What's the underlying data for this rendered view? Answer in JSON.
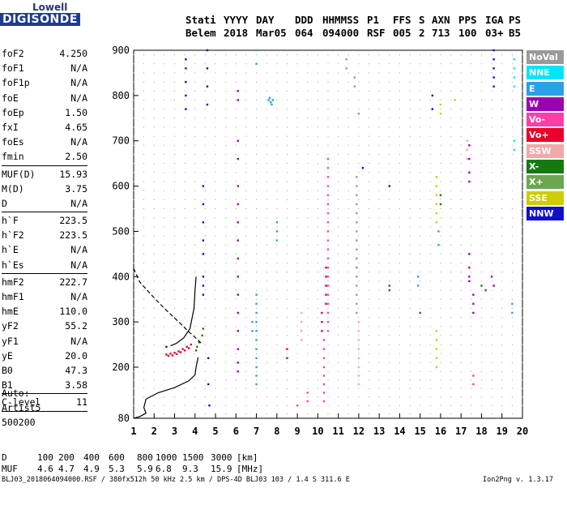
{
  "logo": {
    "top": "Lowell",
    "bottom": "DIGISONDE"
  },
  "header": {
    "labels": [
      "Stati",
      "YYYY",
      "DAY",
      "DDD",
      "HHMMSS",
      "P1",
      "FFS",
      "S",
      "AXN",
      "PPS",
      "IGA",
      "PS"
    ],
    "values": [
      "Belem",
      "2018",
      "Mar05",
      "064",
      "094000",
      "RSF",
      "005",
      "2",
      "713",
      "100",
      "03+",
      "B5"
    ]
  },
  "params": [
    {
      "label": "foF2",
      "value": "4.250"
    },
    {
      "label": "foF1",
      "value": "N/A"
    },
    {
      "label": "foF1p",
      "value": "N/A"
    },
    {
      "label": "foE",
      "value": "N/A"
    },
    {
      "label": "foEp",
      "value": "1.50"
    },
    {
      "label": "fxI",
      "value": "4.65"
    },
    {
      "label": "foEs",
      "value": "N/A"
    },
    {
      "label": "fmin",
      "value": "2.50"
    },
    {
      "sep": true
    },
    {
      "label": "MUF(D)",
      "value": "15.93"
    },
    {
      "label": "M(D)",
      "value": "3.75"
    },
    {
      "label": "D",
      "value": "N/A"
    },
    {
      "sep": true
    },
    {
      "label": "h`F",
      "value": "223.5"
    },
    {
      "label": "h`F2",
      "value": "223.5"
    },
    {
      "label": "h`E",
      "value": "N/A"
    },
    {
      "label": "h`Es",
      "value": "N/A"
    },
    {
      "sep": true
    },
    {
      "label": "hmF2",
      "value": "222.7"
    },
    {
      "label": "hmF1",
      "value": "N/A"
    },
    {
      "label": "hmE",
      "value": "110.0"
    },
    {
      "label": "yF2",
      "value": "55.2"
    },
    {
      "label": "yF1",
      "value": "N/A"
    },
    {
      "label": "yE",
      "value": "20.0"
    },
    {
      "label": "B0",
      "value": "47.3"
    },
    {
      "label": "B1",
      "value": "3.58"
    },
    {
      "sep": true
    },
    {
      "label": "C-level",
      "value": "11"
    },
    {
      "sep": true
    }
  ],
  "auto": {
    "line1": "Auto:",
    "line2": "Artist5",
    "line3": "500200"
  },
  "legend": [
    {
      "label": "NoVal",
      "color": "#9a9a9a"
    },
    {
      "label": "NNE",
      "color": "#00e5ff"
    },
    {
      "label": "E",
      "color": "#2aa0e6"
    },
    {
      "label": "W",
      "color": "#9b00b0"
    },
    {
      "label": "Vo-",
      "color": "#ff3fa8"
    },
    {
      "label": "Vo+",
      "color": "#e8002a"
    },
    {
      "label": "SSW",
      "color": "#f2a8a8"
    },
    {
      "label": "X-",
      "color": "#137a10"
    },
    {
      "label": "X+",
      "color": "#6aa84f"
    },
    {
      "label": "SSE",
      "color": "#cdcd00"
    },
    {
      "label": "NNW",
      "color": "#1010cc"
    }
  ],
  "chart_data": {
    "type": "scatter",
    "x": {
      "min": 1,
      "max": 20,
      "ticks": [
        1,
        2,
        3,
        4,
        5,
        6,
        7,
        8,
        9,
        10,
        11,
        12,
        13,
        14,
        15,
        16,
        17,
        18,
        19,
        20
      ]
    },
    "y": {
      "min": 80,
      "max": 900,
      "ticks": [
        80,
        200,
        300,
        400,
        500,
        600,
        700,
        800,
        900
      ]
    },
    "profile_solid": [
      [
        1.0,
        80
      ],
      [
        1.3,
        84
      ],
      [
        1.6,
        92
      ],
      [
        1.5,
        105
      ],
      [
        1.6,
        125
      ],
      [
        2.2,
        140
      ],
      [
        3.0,
        152
      ],
      [
        3.7,
        168
      ],
      [
        4.0,
        182
      ],
      [
        4.05,
        200
      ],
      [
        4.15,
        222
      ]
    ],
    "trace_dashed": [
      [
        1.0,
        418
      ],
      [
        1.3,
        388
      ],
      [
        1.9,
        358
      ],
      [
        2.5,
        330
      ],
      [
        3.2,
        300
      ],
      [
        3.7,
        278
      ],
      [
        4.1,
        262
      ],
      [
        4.3,
        253
      ]
    ],
    "trace_curve": [
      [
        2.8,
        247
      ],
      [
        3.1,
        253
      ],
      [
        3.45,
        265
      ],
      [
        3.75,
        285
      ],
      [
        3.95,
        330
      ],
      [
        4.0,
        370
      ],
      [
        4.05,
        400
      ]
    ],
    "clusters": [
      {
        "color": "#e8002a",
        "points": [
          [
            2.6,
            228
          ],
          [
            2.8,
            230
          ],
          [
            3.0,
            232
          ],
          [
            3.2,
            235
          ],
          [
            3.4,
            240
          ],
          [
            3.6,
            245
          ],
          [
            3.8,
            250
          ],
          [
            2.7,
            225
          ],
          [
            2.9,
            226
          ],
          [
            3.1,
            229
          ],
          [
            3.3,
            233
          ],
          [
            3.5,
            237
          ],
          [
            3.7,
            242
          ]
        ]
      },
      {
        "color": "#137a10",
        "points": [
          [
            4.05,
            237
          ],
          [
            4.1,
            245
          ],
          [
            4.2,
            255
          ],
          [
            4.35,
            270
          ],
          [
            4.4,
            285
          ]
        ]
      },
      {
        "color": "#1010cc",
        "points": [
          [
            2.6,
            245
          ],
          [
            3.55,
            880
          ],
          [
            3.55,
            860
          ],
          [
            3.55,
            830
          ],
          [
            3.55,
            800
          ],
          [
            3.55,
            770
          ],
          [
            4.6,
            900
          ],
          [
            4.6,
            860
          ],
          [
            4.6,
            820
          ],
          [
            4.6,
            780
          ],
          [
            4.4,
            600
          ],
          [
            4.4,
            560
          ],
          [
            4.4,
            520
          ],
          [
            4.4,
            480
          ],
          [
            4.4,
            450
          ],
          [
            4.4,
            400
          ],
          [
            4.4,
            380
          ],
          [
            4.4,
            360
          ],
          [
            4.65,
            220
          ],
          [
            4.65,
            160
          ],
          [
            4.7,
            110
          ],
          [
            18.6,
            900
          ],
          [
            18.6,
            880
          ],
          [
            18.6,
            860
          ],
          [
            18.6,
            840
          ],
          [
            18.6,
            820
          ],
          [
            15.6,
            770
          ],
          [
            15.6,
            800
          ],
          [
            13.5,
            600
          ],
          [
            12.2,
            640
          ]
        ]
      },
      {
        "color": "#9b00b0",
        "points": [
          [
            6.1,
            810
          ],
          [
            6.1,
            790
          ],
          [
            6.1,
            700
          ],
          [
            6.1,
            660
          ],
          [
            6.1,
            600
          ],
          [
            6.1,
            560
          ],
          [
            6.1,
            520
          ],
          [
            6.1,
            480
          ],
          [
            6.1,
            440
          ],
          [
            6.1,
            400
          ],
          [
            6.1,
            360
          ],
          [
            6.1,
            320
          ],
          [
            6.1,
            280
          ],
          [
            6.1,
            240
          ],
          [
            6.1,
            210
          ],
          [
            6.1,
            190
          ],
          [
            17.4,
            690
          ],
          [
            17.4,
            660
          ],
          [
            17.4,
            630
          ],
          [
            17.4,
            610
          ],
          [
            17.4,
            450
          ],
          [
            17.4,
            420
          ],
          [
            17.4,
            400
          ],
          [
            17.4,
            390
          ],
          [
            17.6,
            360
          ],
          [
            17.6,
            340
          ],
          [
            17.6,
            320
          ],
          [
            18.5,
            400
          ],
          [
            18.6,
            380
          ]
        ]
      },
      {
        "color": "#2aa0e6",
        "points": [
          [
            7.0,
            900
          ],
          [
            7.0,
            870
          ],
          [
            7.0,
            360
          ],
          [
            7.0,
            340
          ],
          [
            7.0,
            320
          ],
          [
            7.0,
            300
          ],
          [
            7.0,
            280
          ],
          [
            7.0,
            260
          ],
          [
            7.0,
            240
          ],
          [
            7.0,
            220
          ],
          [
            7.0,
            200
          ],
          [
            7.0,
            180
          ],
          [
            7.0,
            160
          ],
          [
            7.6,
            790
          ],
          [
            7.7,
            785
          ],
          [
            7.8,
            790
          ],
          [
            7.65,
            795
          ],
          [
            7.75,
            780
          ],
          [
            8.0,
            520
          ],
          [
            8.0,
            500
          ],
          [
            8.0,
            480
          ],
          [
            14.9,
            400
          ],
          [
            14.9,
            380
          ],
          [
            19.5,
            340
          ],
          [
            19.5,
            320
          ],
          [
            15.9,
            500
          ],
          [
            15.9,
            470
          ],
          [
            6.8,
            300
          ],
          [
            6.8,
            280
          ]
        ]
      },
      {
        "color": "#ff3fa8",
        "points": [
          [
            10.5,
            660
          ],
          [
            10.5,
            640
          ],
          [
            10.5,
            620
          ],
          [
            10.5,
            600
          ],
          [
            10.5,
            580
          ],
          [
            10.5,
            560
          ],
          [
            10.5,
            540
          ],
          [
            10.5,
            520
          ],
          [
            10.5,
            500
          ],
          [
            10.5,
            480
          ],
          [
            10.5,
            460
          ],
          [
            10.5,
            440
          ],
          [
            10.5,
            420
          ],
          [
            10.5,
            400
          ],
          [
            10.5,
            380
          ],
          [
            10.5,
            360
          ],
          [
            10.5,
            340
          ],
          [
            10.5,
            320
          ],
          [
            10.5,
            300
          ],
          [
            10.5,
            280
          ],
          [
            10.3,
            260
          ],
          [
            10.3,
            240
          ],
          [
            10.3,
            220
          ],
          [
            10.3,
            200
          ],
          [
            10.3,
            180
          ],
          [
            10.3,
            160
          ],
          [
            10.3,
            140
          ],
          [
            10.3,
            120
          ],
          [
            9.5,
            140
          ],
          [
            9.5,
            120
          ],
          [
            9.0,
            110
          ],
          [
            17.6,
            180
          ],
          [
            17.6,
            160
          ]
        ]
      },
      {
        "color": "#e8002a",
        "points": [
          [
            10.4,
            420
          ],
          [
            10.4,
            400
          ],
          [
            10.4,
            380
          ],
          [
            10.4,
            360
          ],
          [
            10.4,
            340
          ],
          [
            10.2,
            320
          ],
          [
            10.2,
            300
          ],
          [
            10.2,
            280
          ],
          [
            8.5,
            240
          ],
          [
            8.5,
            220
          ]
        ]
      },
      {
        "color": "#cdcd00",
        "points": [
          [
            15.8,
            620
          ],
          [
            15.8,
            600
          ],
          [
            15.8,
            580
          ],
          [
            15.8,
            560
          ],
          [
            15.8,
            540
          ],
          [
            15.8,
            520
          ],
          [
            15.8,
            280
          ],
          [
            15.8,
            260
          ],
          [
            15.8,
            240
          ],
          [
            15.8,
            220
          ],
          [
            15.8,
            200
          ],
          [
            16.0,
            780
          ],
          [
            16.0,
            760
          ],
          [
            11.9,
            440
          ],
          [
            11.9,
            420
          ],
          [
            16.7,
            790
          ]
        ]
      },
      {
        "color": "#00e5ff",
        "points": [
          [
            19.6,
            880
          ],
          [
            19.6,
            860
          ],
          [
            19.6,
            840
          ],
          [
            19.6,
            820
          ],
          [
            19.6,
            700
          ],
          [
            19.6,
            680
          ]
        ]
      },
      {
        "color": "#f2a8a8",
        "points": [
          [
            9.2,
            320
          ],
          [
            9.2,
            300
          ],
          [
            9.2,
            280
          ],
          [
            9.2,
            260
          ],
          [
            12.0,
            300
          ],
          [
            12.0,
            280
          ],
          [
            12.0,
            260
          ],
          [
            12.0,
            240
          ],
          [
            12.0,
            220
          ],
          [
            12.0,
            200
          ],
          [
            12.0,
            180
          ],
          [
            12.0,
            160
          ],
          [
            17.3,
            700
          ],
          [
            17.3,
            680
          ],
          [
            17.3,
            660
          ]
        ]
      },
      {
        "color": "#9a9a9a",
        "points": [
          [
            11.4,
            880
          ],
          [
            11.4,
            860
          ],
          [
            11.8,
            840
          ],
          [
            11.8,
            820
          ],
          [
            12.0,
            760
          ],
          [
            11.9,
            620
          ],
          [
            11.9,
            600
          ],
          [
            11.9,
            580
          ],
          [
            11.9,
            560
          ],
          [
            11.9,
            540
          ],
          [
            11.9,
            520
          ],
          [
            11.9,
            500
          ],
          [
            11.9,
            480
          ],
          [
            11.9,
            460
          ],
          [
            11.9,
            440
          ],
          [
            11.9,
            420
          ],
          [
            11.9,
            400
          ],
          [
            11.9,
            380
          ],
          [
            11.9,
            360
          ],
          [
            11.9,
            340
          ],
          [
            11.9,
            320
          ]
        ]
      },
      {
        "color": "#137a10",
        "points": [
          [
            16.0,
            580
          ],
          [
            16.0,
            560
          ],
          [
            18.0,
            380
          ],
          [
            18.2,
            370
          ],
          [
            15.0,
            320
          ],
          [
            13.5,
            380
          ],
          [
            13.5,
            370
          ]
        ]
      }
    ]
  },
  "bottom": {
    "d_label": "D",
    "d_values": [
      "100",
      "200",
      "400",
      "600",
      "800",
      "1000",
      "1500",
      "3000",
      "[km]"
    ],
    "muf_label": "MUF",
    "muf_values": [
      "4.6",
      "4.7",
      "4.9",
      "5.3",
      "5.9",
      "6.8",
      "9.3",
      "15.9",
      "[MHz]"
    ]
  },
  "footer": {
    "file": "BLJ03_2018064094000.RSF / 380fx512h 50 kHz 2.5 km / DPS-4D BLJ03 103 / 1.4 S 311.6 E",
    "version": "Ion2Png v. 1.3.17"
  }
}
